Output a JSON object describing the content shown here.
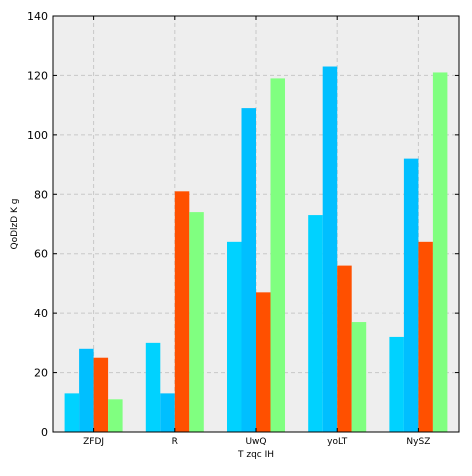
{
  "chart_data": {
    "type": "bar",
    "title": "",
    "xlabel": "T  zqc IH",
    "ylabel": "QoDlzD K  g",
    "categories": [
      "ZFDJ",
      "R",
      "UwQ",
      "yoLT",
      "NySZ"
    ],
    "series": [
      {
        "values": [
          13,
          30,
          64,
          73,
          32
        ],
        "color": "#00d2ff"
      },
      {
        "values": [
          28,
          13,
          109,
          123,
          92
        ],
        "color": "#00bfff"
      },
      {
        "values": [
          25,
          81,
          47,
          56,
          64
        ],
        "color": "#ff5000"
      },
      {
        "values": [
          11,
          74,
          119,
          37,
          121
        ],
        "color": "#80ff80"
      }
    ],
    "ylim": [
      0,
      140
    ],
    "yticks": [
      0,
      20,
      40,
      60,
      80,
      100,
      120,
      140
    ],
    "grid": true,
    "background": "#eeeeee"
  }
}
